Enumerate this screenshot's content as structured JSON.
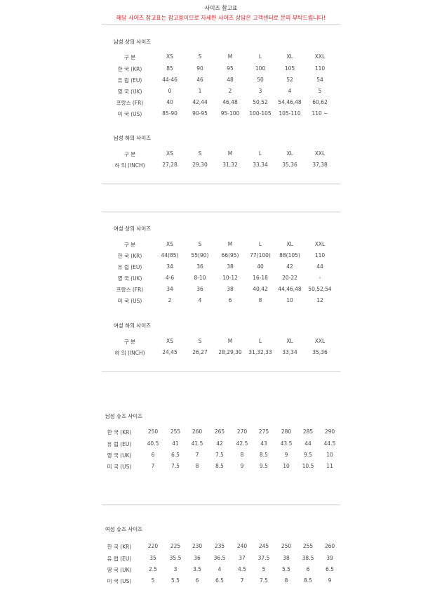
{
  "header": {
    "title": "사이즈 참고표",
    "notice": "해당 사이즈 참고표는 참고용이므로 자세한 사이즈 상담은 고객센터로 문의 부탁드립니다!",
    "notice_color": "#d0262b"
  },
  "sections": [
    {
      "title": "남성 상의 사이즈",
      "type": "apparel",
      "header": [
        "구 분",
        "XS",
        "S",
        "M",
        "L",
        "XL",
        "XXL"
      ],
      "rows": [
        [
          "한 국 (KR)",
          "85",
          "90",
          "95",
          "100",
          "105",
          "110"
        ],
        [
          "유 럽 (EU)",
          "44-46",
          "46",
          "48",
          "50",
          "52",
          "54"
        ],
        [
          "영 국 (UK)",
          "0",
          "1",
          "2",
          "3",
          "4",
          "5"
        ],
        [
          "프랑스 (FR)",
          "40",
          "42,44",
          "46,48",
          "50,52",
          "54,46,48",
          "60,62"
        ],
        [
          "미 국 (US)",
          "85-90",
          "90-95",
          "95-100",
          "100-105",
          "105-110",
          "110 ~"
        ]
      ]
    },
    {
      "title": "남성 하의 사이즈",
      "type": "apparel",
      "header": [
        "구 분",
        "XS",
        "S",
        "M",
        "L",
        "XL",
        "XXL"
      ],
      "rows": [
        [
          "하 의 (INCH)",
          "27,28",
          "29,30",
          "31,32",
          "33,34",
          "35,36",
          "37,38"
        ]
      ]
    },
    {
      "title": "여성 상의 사이즈",
      "type": "apparel",
      "header": [
        "구 분",
        "XS",
        "S",
        "M",
        "L",
        "XL",
        "XXL"
      ],
      "rows": [
        [
          "한 국 (KR)",
          "44(85)",
          "55(90)",
          "66(95)",
          "77(100)",
          "88(105)",
          "110"
        ],
        [
          "유 럽 (EU)",
          "34",
          "36",
          "38",
          "40",
          "42",
          "44"
        ],
        [
          "영 국 (UK)",
          "4-6",
          "8-10",
          "10-12",
          "16-18",
          "20-22",
          "-"
        ],
        [
          "프랑스 (FR)",
          "34",
          "36",
          "38",
          "40,42",
          "44,46,48",
          "50,52,54"
        ],
        [
          "미 국 (US)",
          "2",
          "4",
          "6",
          "8",
          "10",
          "12"
        ]
      ]
    },
    {
      "title": "여성 하의 사이즈",
      "type": "apparel",
      "header": [
        "구 분",
        "XS",
        "S",
        "M",
        "L",
        "XL",
        "XXL"
      ],
      "rows": [
        [
          "하 의 (INCH)",
          "24,45",
          "26,27",
          "28,29,30",
          "31,32,33",
          "33,34",
          "35,36"
        ]
      ]
    },
    {
      "title": "남성 슈즈 사이즈",
      "type": "shoes",
      "header": [],
      "rows": [
        [
          "한 국 (KR)",
          "250",
          "255",
          "260",
          "265",
          "270",
          "275",
          "280",
          "285",
          "290"
        ],
        [
          "유 럽 (EU)",
          "40.5",
          "41",
          "41.5",
          "42",
          "42.5",
          "43",
          "43.5",
          "44",
          "44.5"
        ],
        [
          "영 국 (UK)",
          "6",
          "6.5",
          "7",
          "7.5",
          "8",
          "8.5",
          "9",
          "9.5",
          "10"
        ],
        [
          "미 국 (US)",
          "7",
          "7.5",
          "8",
          "8.5",
          "9",
          "9.5",
          "10",
          "10.5",
          "11"
        ]
      ]
    },
    {
      "title": "여성 슈즈 사이즈",
      "type": "shoes",
      "header": [],
      "rows": [
        [
          "한 국 (KR)",
          "220",
          "225",
          "230",
          "235",
          "240",
          "245",
          "250",
          "255",
          "260"
        ],
        [
          "유 럽 (EU)",
          "35",
          "35.5",
          "36",
          "36.5",
          "37",
          "37.5",
          "38",
          "38.5",
          "39"
        ],
        [
          "영 국 (UK)",
          "2.5",
          "3",
          "3.5",
          "4",
          "4.5",
          "5",
          "5.5",
          "6",
          "6.5"
        ],
        [
          "미 국 (US)",
          "5",
          "5.5",
          "6",
          "6.5",
          "7",
          "7.5",
          "8",
          "8.5",
          "9"
        ]
      ]
    }
  ]
}
